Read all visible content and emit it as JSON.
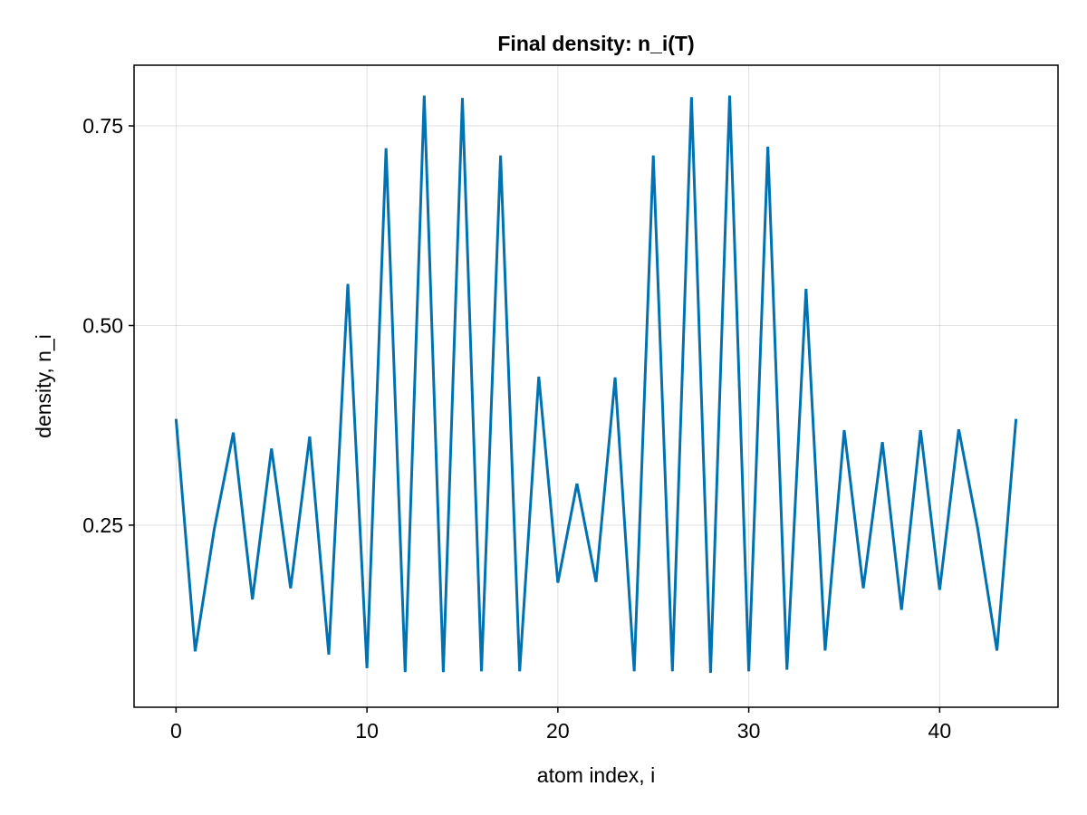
{
  "chart_data": {
    "type": "line",
    "title": "Final density: n_i(T)",
    "xlabel": "atom index, i",
    "ylabel": "density, n_i",
    "xlim": [
      -2.2,
      46.2
    ],
    "ylim": [
      0.022,
      0.826
    ],
    "xticks": [
      0,
      10,
      20,
      30,
      40
    ],
    "xtick_labels": [
      "0",
      "10",
      "20",
      "30",
      "40"
    ],
    "yticks": [
      0.25,
      0.5,
      0.75
    ],
    "ytick_labels": [
      "0.25",
      "0.50",
      "0.75"
    ],
    "grid": true,
    "series": [
      {
        "color": "#0072b2",
        "x": [
          0,
          1,
          2,
          3,
          4,
          5,
          6,
          7,
          8,
          9,
          10,
          11,
          12,
          13,
          14,
          15,
          16,
          17,
          18,
          19,
          20,
          21,
          22,
          23,
          24,
          25,
          26,
          27,
          28,
          29,
          30,
          31,
          32,
          33,
          34,
          35,
          36,
          37,
          38,
          39,
          40,
          41,
          42,
          43,
          44
        ],
        "values": [
          0.383,
          0.092,
          0.245,
          0.366,
          0.157,
          0.346,
          0.171,
          0.361,
          0.088,
          0.552,
          0.071,
          0.722,
          0.066,
          0.788,
          0.066,
          0.785,
          0.067,
          0.713,
          0.067,
          0.436,
          0.178,
          0.302,
          0.179,
          0.435,
          0.067,
          0.713,
          0.067,
          0.786,
          0.065,
          0.788,
          0.067,
          0.724,
          0.069,
          0.546,
          0.093,
          0.369,
          0.171,
          0.354,
          0.144,
          0.369,
          0.169,
          0.37,
          0.245,
          0.093,
          0.383
        ]
      }
    ]
  }
}
